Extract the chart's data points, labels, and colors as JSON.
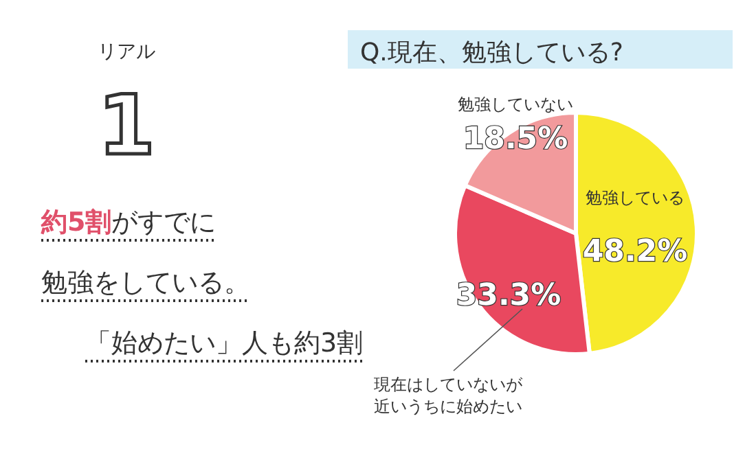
{
  "chart_data": {
    "type": "pie",
    "title": "Q.現在、勉強している?",
    "categories": [
      "勉強している",
      "現在はしていないが近いうちに始めたい",
      "勉強していない"
    ],
    "values": [
      48.2,
      33.3,
      18.5
    ],
    "value_labels": [
      "48.2%",
      "33.3%",
      "18.5%"
    ],
    "colors": [
      "#f7ea2a",
      "#e9485f",
      "#f29a9c"
    ],
    "annotations": [
      "リアル",
      "1",
      "**約5割**がすでに",
      "勉強をしている。",
      "「始めたい」人も約3割"
    ]
  }
}
